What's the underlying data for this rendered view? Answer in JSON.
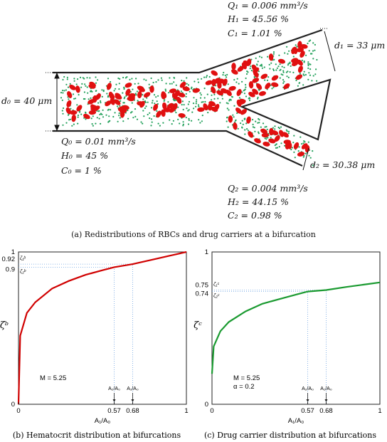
{
  "diagram": {
    "outlet1": {
      "q": "Q₁ = 0.006 mm³/s",
      "h": "H₁ = 45.56 %",
      "c": "C₁ =  1.01 %",
      "d": "d₁ = 33 μm"
    },
    "inlet": {
      "d": "d₀ = 40 μm",
      "q": "Q₀ = 0.01 mm³/s",
      "h": "H₀ = 45 %",
      "c": "C₀ =   1 %"
    },
    "outlet2": {
      "d": "d₂ = 30.38 μm",
      "q": "Q₂ = 0.004 mm³/s",
      "h": "H₂ = 44.15 %",
      "c": "C₂ =  0.98 %"
    },
    "caption": "(a) Redistributions of RBCs and drug carriers at a bifurcation",
    "colors": {
      "rbc": "#e01010",
      "carrier": "#22a05a",
      "wall": "#222222"
    }
  },
  "charts": [
    {
      "type": "line",
      "caption": "(b) Hematocrit distribution at bifurcations",
      "ylabel": "ζᵇ",
      "xlabel": "A₁/A₀",
      "annotation": "M = 5.25",
      "x_ticks": [
        "0",
        "0.57",
        "0.68",
        "1"
      ],
      "y_ticks": [
        "0",
        "1"
      ],
      "marks_x": [
        {
          "label": "A₂/A₀",
          "x": 0.57
        },
        {
          "label": "A₁/A₀",
          "x": 0.68
        }
      ],
      "marks_y": [
        {
          "value_label": "0.92",
          "sym": "ζ₁ᵇ",
          "y": 0.92
        },
        {
          "value_label": "0.9",
          "sym": "ζ₂ᵇ",
          "y": 0.9
        }
      ],
      "color": "#d00000"
    },
    {
      "type": "line",
      "caption": "(c) Drug carrier distribution at bifurcations",
      "ylabel": "ζᶜ",
      "xlabel": "A₁/A₀",
      "annotation": "M = 5.25",
      "annotation2": "α = 0.2",
      "x_ticks": [
        "0",
        "0.57",
        "0.68",
        "1"
      ],
      "y_ticks": [
        "0",
        "1"
      ],
      "marks_x": [
        {
          "label": "A₂/A₀",
          "x": 0.57
        },
        {
          "label": "A₁/A₀",
          "x": 0.68
        }
      ],
      "marks_y": [
        {
          "value_label": "0.75",
          "sym": "ζ₁ᶜ",
          "y": 0.75
        },
        {
          "value_label": "0.74",
          "sym": "ζ₂ᶜ",
          "y": 0.74
        }
      ],
      "color": "#1a9a30"
    }
  ],
  "chart_data": [
    {
      "type": "line",
      "title": "(b) Hematocrit distribution at bifurcations",
      "xlabel": "A₁/A₀",
      "ylabel": "ζᵇ",
      "xlim": [
        0,
        1
      ],
      "ylim": [
        0,
        1
      ],
      "series": [
        {
          "values_x": [
            0,
            0.01,
            0.05,
            0.1,
            0.2,
            0.3,
            0.4,
            0.5,
            0.57,
            0.68,
            0.8,
            0.9,
            1.0
          ],
          "values_y": [
            0,
            0.45,
            0.6,
            0.67,
            0.76,
            0.81,
            0.85,
            0.88,
            0.9,
            0.92,
            0.95,
            0.975,
            1.0
          ]
        }
      ]
    },
    {
      "type": "line",
      "title": "(c) Drug carrier distribution at bifurcations",
      "xlabel": "A₁/A₀",
      "ylabel": "ζᶜ",
      "xlim": [
        0,
        1
      ],
      "ylim": [
        0,
        1
      ],
      "series": [
        {
          "values_x": [
            0,
            0.01,
            0.05,
            0.1,
            0.2,
            0.3,
            0.4,
            0.5,
            0.57,
            0.68,
            0.8,
            0.9,
            1.0
          ],
          "values_y": [
            0.2,
            0.38,
            0.48,
            0.54,
            0.61,
            0.66,
            0.69,
            0.72,
            0.74,
            0.75,
            0.77,
            0.785,
            0.8
          ]
        }
      ]
    }
  ]
}
